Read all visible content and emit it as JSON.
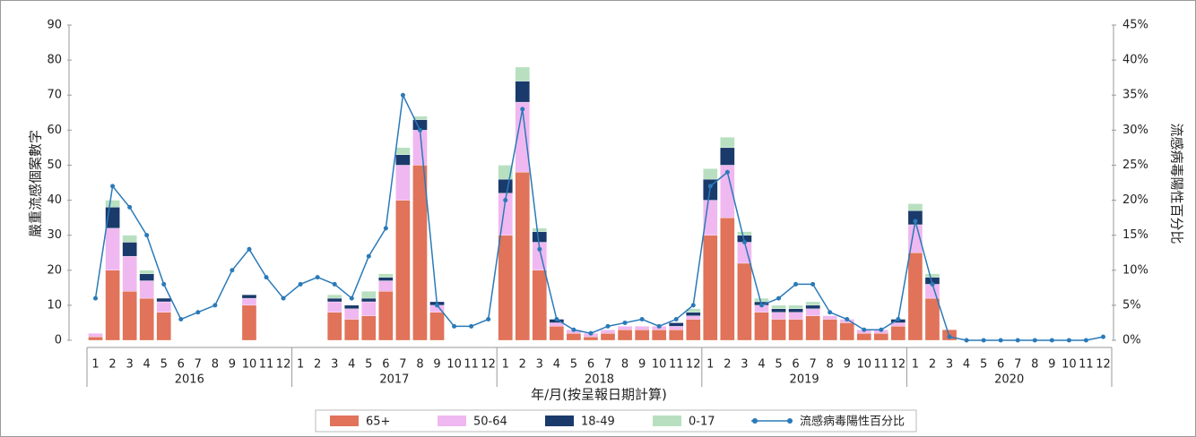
{
  "chart_data": {
    "type": "bar",
    "stacked": true,
    "y_label": "嚴重流感個案數字",
    "y2_label": "流感病毒陽性百分比",
    "x_label": "年/月(按呈報日期計算)",
    "categories": [
      "1",
      "2",
      "3",
      "4",
      "5",
      "6",
      "7",
      "8",
      "9",
      "10",
      "11",
      "12",
      "1",
      "2",
      "3",
      "4",
      "5",
      "6",
      "7",
      "8",
      "9",
      "10",
      "11",
      "12",
      "1",
      "2",
      "3",
      "4",
      "5",
      "6",
      "7",
      "8",
      "9",
      "10",
      "11",
      "12",
      "1",
      "2",
      "3",
      "4",
      "5",
      "6",
      "7",
      "8",
      "9",
      "10",
      "11",
      "12",
      "1",
      "2",
      "3",
      "4",
      "5",
      "6",
      "7",
      "8",
      "9",
      "10",
      "11",
      "12"
    ],
    "year_labels": [
      "2016",
      "2017",
      "2018",
      "2019",
      "2020"
    ],
    "ylim": [
      0,
      90
    ],
    "yticks": [
      0,
      10,
      20,
      30,
      40,
      50,
      60,
      70,
      80,
      90
    ],
    "y2lim": [
      0,
      45
    ],
    "y2ticks": [
      {
        "value": 0,
        "label": "0%"
      },
      {
        "value": 5,
        "label": "5%"
      },
      {
        "value": 10,
        "label": "10%"
      },
      {
        "value": 15,
        "label": "15%"
      },
      {
        "value": 20,
        "label": "20%"
      },
      {
        "value": 25,
        "label": "25%"
      },
      {
        "value": 30,
        "label": "30%"
      },
      {
        "value": 35,
        "label": "35%"
      },
      {
        "value": 40,
        "label": "40%"
      },
      {
        "value": 45,
        "label": "45%"
      }
    ],
    "series": [
      {
        "name": "65+",
        "color": "#e0735a",
        "values": [
          1,
          20,
          14,
          12,
          8,
          0,
          0,
          0,
          0,
          10,
          0,
          0,
          0,
          0,
          8,
          6,
          7,
          14,
          40,
          50,
          8,
          0,
          0,
          0,
          30,
          48,
          20,
          4,
          2,
          1,
          2,
          3,
          3,
          3,
          3,
          6,
          30,
          35,
          22,
          8,
          6,
          6,
          7,
          6,
          5,
          2,
          2,
          4,
          25,
          12,
          3,
          0,
          0,
          0,
          0,
          0,
          0,
          0,
          0,
          0
        ]
      },
      {
        "name": "50-64",
        "color": "#f0b8f0",
        "values": [
          1,
          12,
          10,
          5,
          3,
          0,
          0,
          0,
          0,
          2,
          0,
          0,
          0,
          0,
          3,
          3,
          4,
          3,
          10,
          10,
          2,
          0,
          0,
          0,
          12,
          20,
          8,
          1,
          1,
          1,
          1,
          1,
          1,
          1,
          1,
          1,
          10,
          15,
          6,
          2,
          2,
          2,
          2,
          1,
          1,
          1,
          1,
          1,
          8,
          4,
          0,
          0,
          0,
          0,
          0,
          0,
          0,
          0,
          0,
          0
        ]
      },
      {
        "name": "18-49",
        "color": "#1a3a6b",
        "values": [
          0,
          6,
          4,
          2,
          1,
          0,
          0,
          0,
          0,
          1,
          0,
          0,
          0,
          0,
          1,
          1,
          1,
          1,
          3,
          3,
          1,
          0,
          0,
          0,
          4,
          6,
          3,
          1,
          0,
          0,
          0,
          0,
          0,
          0,
          1,
          1,
          6,
          5,
          2,
          1,
          1,
          1,
          1,
          0,
          0,
          0,
          0,
          1,
          4,
          2,
          0,
          0,
          0,
          0,
          0,
          0,
          0,
          0,
          0,
          0
        ]
      },
      {
        "name": "0-17",
        "color": "#b8e0c0",
        "values": [
          0,
          2,
          2,
          1,
          0,
          0,
          0,
          0,
          0,
          0,
          0,
          0,
          0,
          0,
          1,
          0,
          2,
          1,
          2,
          1,
          0,
          0,
          0,
          0,
          4,
          4,
          1,
          0,
          0,
          0,
          0,
          0,
          0,
          0,
          0,
          1,
          3,
          3,
          1,
          1,
          1,
          1,
          1,
          0,
          0,
          0,
          0,
          0,
          2,
          1,
          0,
          0,
          0,
          0,
          0,
          0,
          0,
          0,
          0,
          0
        ]
      },
      {
        "name": "流感病毒陽性百分比",
        "color": "#2a7ab8",
        "axis": "y2",
        "values": [
          6,
          22,
          19,
          15,
          8,
          3,
          4,
          5,
          10,
          13,
          9,
          6,
          8,
          9,
          8,
          6,
          12,
          16,
          35,
          30,
          5,
          2,
          2,
          3,
          20,
          33,
          13,
          3,
          1.5,
          1,
          2,
          2.5,
          3,
          2,
          3,
          5,
          22,
          24,
          14,
          5,
          6,
          8,
          8,
          4,
          3,
          1.5,
          1.5,
          3,
          17,
          8,
          0.5,
          0,
          0,
          0,
          0,
          0,
          0,
          0,
          0,
          0.5
        ]
      }
    ]
  }
}
